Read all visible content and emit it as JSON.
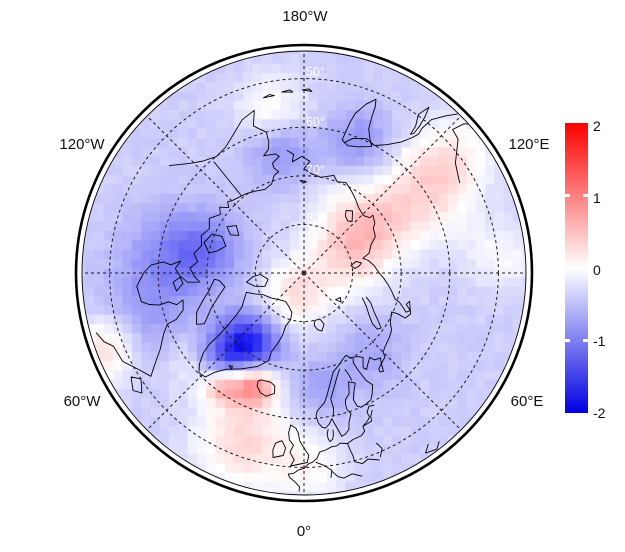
{
  "figure": {
    "kind": "north polar anomaly map",
    "lon_labels": {
      "top": "180°W",
      "upper_left": "120°W",
      "upper_right": "120°E",
      "lower_left": "60°W",
      "lower_right": "60°E",
      "bottom": "0°"
    },
    "lat_labels": [
      "50°",
      "60°",
      "70°",
      "80°"
    ]
  },
  "colorbar": {
    "ticks": [
      "2",
      "1",
      "0",
      "-1",
      "-2"
    ],
    "top_color": "#fb0000",
    "mid_color": "#ffffff",
    "bottom_color": "#0000e2"
  },
  "chart_data": {
    "type": "heatmap",
    "projection": "north_polar_stereographic",
    "pole": "north",
    "edge_latitude_deg": 44.3,
    "graticule_lat_circles_deg": [
      50,
      60,
      70,
      80
    ],
    "graticule_lon_step_deg": 45,
    "lon_label_step_deg": 60,
    "colorbar_range": [
      -2,
      2
    ],
    "colorbar_ticks": [
      2,
      1,
      0,
      -1,
      -2
    ],
    "base_anomaly": -0.38,
    "anomaly_blobs": [
      {
        "lat": 71,
        "lon": -38,
        "sigma_deg": 4.5,
        "peak": -1.45
      },
      {
        "lat": 64,
        "lon": -45,
        "sigma_deg": 4.0,
        "peak": -0.7
      },
      {
        "lat": 65,
        "lon": -24,
        "sigma_deg": 3.2,
        "peak": 1.35
      },
      {
        "lat": 61.5,
        "lon": -36,
        "sigma_deg": 2.8,
        "peak": 1.0
      },
      {
        "lat": 61,
        "lon": -50,
        "sigma_deg": 4.0,
        "peak": 0.5
      },
      {
        "lat": 85,
        "lon": -20,
        "sigma_deg": 5.0,
        "peak": 0.6
      },
      {
        "lat": 81,
        "lon": 110,
        "sigma_deg": 6.0,
        "peak": 0.45
      },
      {
        "lat": 74,
        "lon": 128,
        "sigma_deg": 6.5,
        "peak": 0.7
      },
      {
        "lat": 60,
        "lon": 123,
        "sigma_deg": 7.0,
        "peak": 0.6
      },
      {
        "lat": 51,
        "lon": 129,
        "sigma_deg": 6.0,
        "peak": 0.4
      },
      {
        "lat": 53,
        "lon": -20,
        "sigma_deg": 7.0,
        "peak": 0.7
      },
      {
        "lat": 50,
        "lon": 2,
        "sigma_deg": 5.0,
        "peak": 0.4
      },
      {
        "lat": 46,
        "lon": -69,
        "sigma_deg": 5.0,
        "peak": 0.75
      },
      {
        "lat": 63,
        "lon": -97,
        "sigma_deg": 7.0,
        "peak": -0.55
      },
      {
        "lat": 55,
        "lon": -74,
        "sigma_deg": 7.0,
        "peak": -0.35
      },
      {
        "lat": 70,
        "lon": -105,
        "sigma_deg": 5.0,
        "peak": -0.45
      },
      {
        "lat": 64,
        "lon": -169,
        "sigma_deg": 5.0,
        "peak": -0.5
      },
      {
        "lat": 61,
        "lon": 156,
        "sigma_deg": 5.0,
        "peak": -0.5
      },
      {
        "lat": 66,
        "lon": 9,
        "sigma_deg": 4.5,
        "peak": -0.35
      },
      {
        "lat": 69,
        "lon": 40,
        "sigma_deg": 5.0,
        "peak": -0.3
      },
      {
        "lat": 56,
        "lon": -169,
        "sigma_deg": 5.0,
        "peak": 0.5
      },
      {
        "lat": 49,
        "lon": 95,
        "sigma_deg": 5.0,
        "peak": 0.35
      }
    ]
  }
}
